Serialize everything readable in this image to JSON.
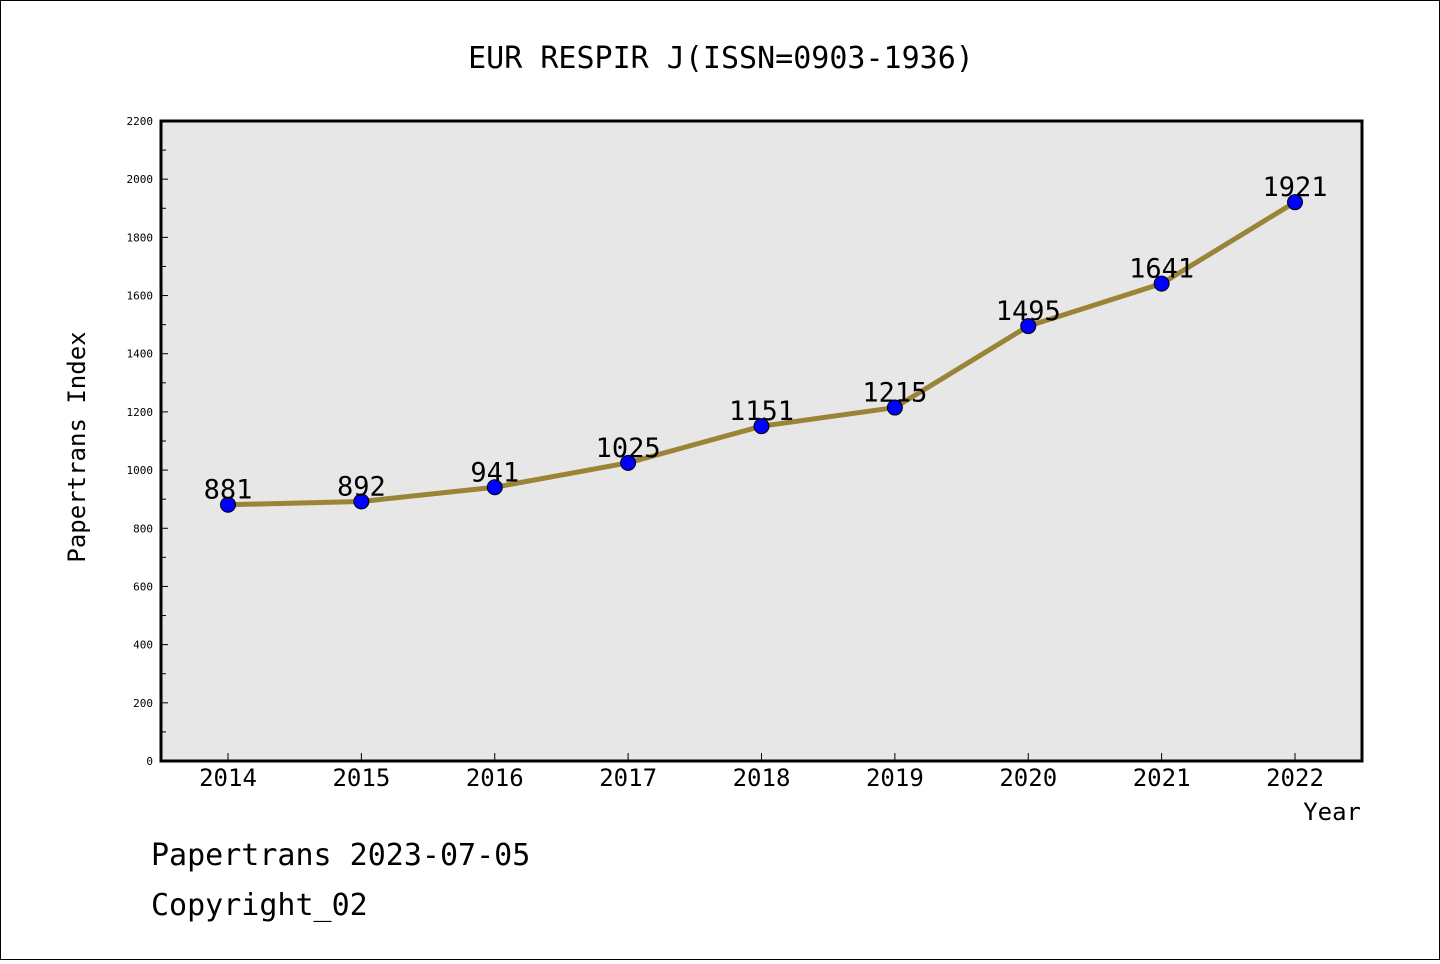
{
  "chart_data": {
    "type": "line",
    "title": "EUR RESPIR J(ISSN=0903-1936)",
    "xlabel": "Year",
    "ylabel": "Papertrans Index",
    "x": [
      "2014",
      "2015",
      "2016",
      "2017",
      "2018",
      "2019",
      "2020",
      "2021",
      "2022"
    ],
    "series": [
      {
        "values": [
          881,
          892,
          941,
          1025,
          1151,
          1215,
          1495,
          1641,
          1921
        ]
      }
    ],
    "ylim": [
      0,
      2200
    ],
    "yticks": [
      0,
      200,
      400,
      600,
      800,
      1000,
      1200,
      1400,
      1600,
      1800,
      2000,
      2200
    ],
    "grid": false,
    "colors": {
      "line": "#9a8437",
      "marker": "#0000ff",
      "plot_bg": "#e7e7e7"
    }
  },
  "footer": {
    "line1": "Papertrans 2023-07-05",
    "line2": "Copyright_02"
  }
}
